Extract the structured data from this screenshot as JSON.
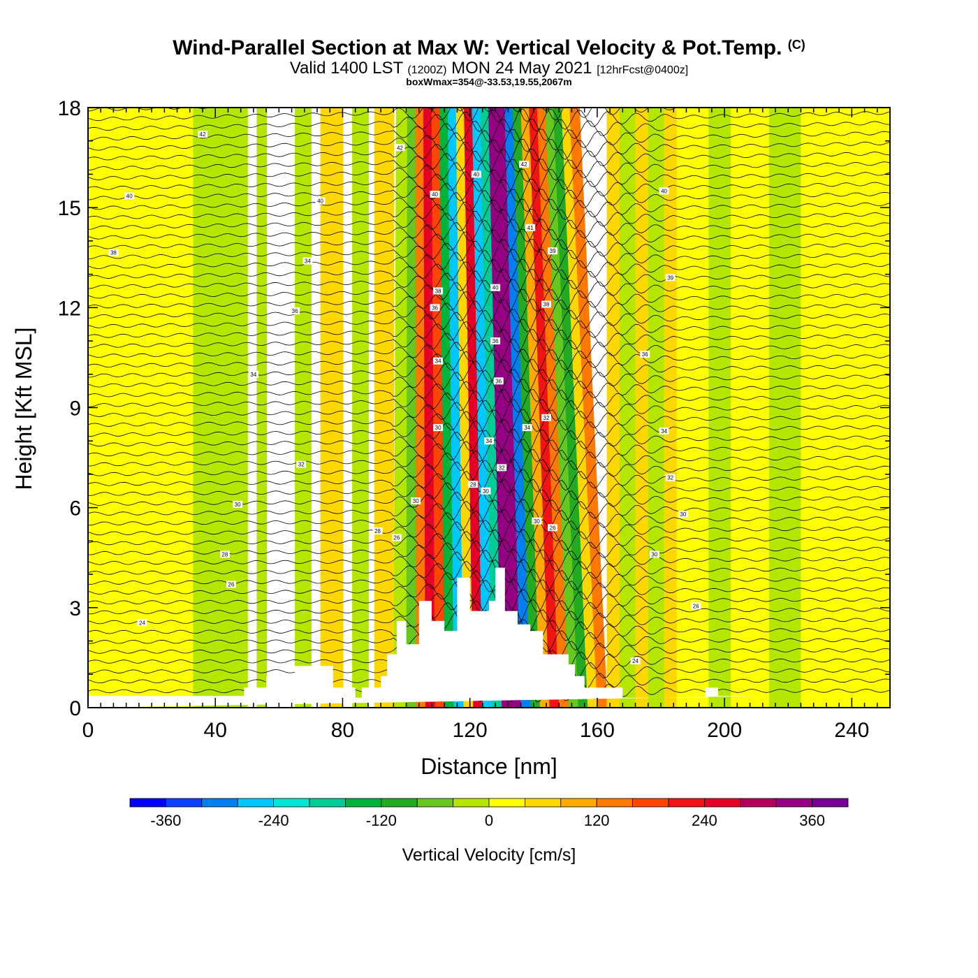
{
  "header": {
    "title_main": "Wind-Parallel Section at Max W: Vertical Velocity & Pot.Temp.",
    "title_mark": "(C)",
    "valid_prefix": "Valid 1400 LST",
    "valid_utc": "(1200Z)",
    "valid_date": "MON 24 May 2021",
    "valid_fcst": "[12hrFcst@0400z]",
    "boxwmax": "boxWmax=354@-33.53,19.55,2067m"
  },
  "chart_data": {
    "type": "heatmap",
    "xlabel": "Distance [nm]",
    "ylabel": "Height [Kft MSL]",
    "xlim": [
      0,
      252
    ],
    "ylim": [
      0,
      18
    ],
    "xticks": [
      0,
      40,
      80,
      120,
      160,
      200,
      240
    ],
    "yticks": [
      0,
      3,
      6,
      9,
      12,
      15,
      18
    ],
    "colorbar": {
      "label": "Vertical Velocity [cm/s]",
      "tick_labels": [
        -360,
        -240,
        -120,
        0,
        120,
        240,
        360
      ],
      "level_min": -400,
      "level_step": 40,
      "colors": [
        "#0000ff",
        "#0a40ff",
        "#0080f0",
        "#00c8ff",
        "#00e6d2",
        "#00cc96",
        "#00b43c",
        "#22aa22",
        "#66c81e",
        "#b4e600",
        "#ffff00",
        "#ffd700",
        "#ffaa00",
        "#ff7800",
        "#ff4600",
        "#f01414",
        "#e60028",
        "#b4005a",
        "#960082",
        "#780096"
      ]
    },
    "vertical_velocity_bands_cm_s": [
      {
        "x": [
          0,
          33
        ],
        "w": 0
      },
      {
        "x": [
          33,
          50
        ],
        "w": -40
      },
      {
        "x": [
          53,
          56
        ],
        "w": -40
      },
      {
        "x": [
          65,
          70
        ],
        "w": -40
      },
      {
        "x": [
          73,
          76
        ],
        "w": 60
      },
      {
        "x": [
          76,
          80
        ],
        "w": 40
      },
      {
        "x": [
          83,
          88
        ],
        "w": -40
      },
      {
        "x": [
          90,
          96
        ],
        "w": 40
      },
      {
        "x": [
          96,
          100
        ],
        "w": -40
      },
      {
        "x": [
          100,
          103
        ],
        "w": -80
      },
      {
        "x": [
          103,
          106
        ],
        "w": 120
      },
      {
        "x": [
          106,
          109
        ],
        "w": 240
      },
      {
        "x": [
          109,
          112
        ],
        "w": 160
      },
      {
        "x": [
          112,
          115
        ],
        "w": -160
      },
      {
        "x": [
          115,
          118
        ],
        "w": -260
      },
      {
        "x": [
          118,
          121
        ],
        "w": 40
      },
      {
        "x": [
          121,
          124
        ],
        "w": 260
      },
      {
        "x": [
          124,
          127
        ],
        "w": -280
      },
      {
        "x": [
          127,
          130
        ],
        "w": -200
      },
      {
        "x": [
          130,
          133
        ],
        "w": 330
      },
      {
        "x": [
          133,
          136
        ],
        "w": 354
      },
      {
        "x": [
          136,
          139
        ],
        "w": -300
      },
      {
        "x": [
          139,
          142
        ],
        "w": -120
      },
      {
        "x": [
          142,
          145
        ],
        "w": 80
      },
      {
        "x": [
          145,
          148
        ],
        "w": 200
      },
      {
        "x": [
          148,
          151
        ],
        "w": 120
      },
      {
        "x": [
          151,
          154
        ],
        "w": -60
      },
      {
        "x": [
          154,
          157
        ],
        "w": -120
      },
      {
        "x": [
          157,
          160
        ],
        "w": 40
      },
      {
        "x": [
          160,
          163
        ],
        "w": 120
      },
      {
        "x": [
          163,
          167
        ],
        "w": 60
      },
      {
        "x": [
          167,
          172
        ],
        "w": -40
      },
      {
        "x": [
          172,
          176
        ],
        "w": 40
      },
      {
        "x": [
          176,
          181
        ],
        "w": -40
      },
      {
        "x": [
          181,
          185
        ],
        "w": 40
      },
      {
        "x": [
          185,
          195
        ],
        "w": 0
      },
      {
        "x": [
          195,
          202
        ],
        "w": -40
      },
      {
        "x": [
          202,
          214
        ],
        "w": 0
      },
      {
        "x": [
          214,
          224
        ],
        "w": -40
      },
      {
        "x": [
          224,
          252
        ],
        "w": 0
      }
    ],
    "terrain_profile": {
      "x": [
        0,
        49,
        49,
        56,
        56,
        65,
        65,
        77,
        77,
        84,
        84,
        86,
        86,
        92,
        92,
        94,
        94,
        97,
        97,
        100,
        100,
        104,
        104,
        108,
        108,
        112,
        112,
        116,
        116,
        120,
        120,
        126,
        126,
        128,
        128,
        131,
        131,
        135,
        135,
        139,
        139,
        143,
        143,
        151,
        151,
        153,
        153,
        156,
        156,
        168,
        168,
        194,
        194,
        198,
        198,
        211,
        211,
        252
      ],
      "height": [
        0.35,
        0.35,
        0.6,
        0.6,
        0.95,
        0.95,
        1.25,
        1.25,
        0.6,
        0.6,
        0.3,
        0.3,
        0.6,
        0.6,
        0.95,
        0.95,
        1.6,
        1.6,
        2.6,
        2.6,
        1.9,
        1.9,
        3.2,
        3.2,
        2.6,
        2.6,
        2.3,
        2.3,
        3.9,
        3.9,
        2.9,
        2.9,
        3.2,
        3.2,
        4.2,
        4.2,
        2.9,
        2.9,
        2.5,
        2.5,
        2.3,
        2.3,
        1.6,
        1.6,
        1.3,
        1.3,
        0.95,
        0.95,
        0.6,
        0.6,
        0.3,
        0.3,
        0.6,
        0.6,
        0.35,
        0.35
      ]
    },
    "theta_contour_labels": [
      {
        "x": 36,
        "y": 17.2,
        "text": "42"
      },
      {
        "x": 13,
        "y": 15.35,
        "text": "40"
      },
      {
        "x": 8,
        "y": 13.65,
        "text": "38"
      },
      {
        "x": 69,
        "y": 13.4,
        "text": "34"
      },
      {
        "x": 65,
        "y": 11.9,
        "text": "36"
      },
      {
        "x": 52,
        "y": 10.0,
        "text": "34"
      },
      {
        "x": 67,
        "y": 7.3,
        "text": "32"
      },
      {
        "x": 47,
        "y": 6.1,
        "text": "30"
      },
      {
        "x": 43,
        "y": 4.6,
        "text": "28"
      },
      {
        "x": 45,
        "y": 3.7,
        "text": "26"
      },
      {
        "x": 17,
        "y": 2.55,
        "text": "24"
      },
      {
        "x": 73,
        "y": 15.2,
        "text": "40"
      },
      {
        "x": 98,
        "y": 16.8,
        "text": "42"
      },
      {
        "x": 109,
        "y": 15.4,
        "text": "40"
      },
      {
        "x": 110,
        "y": 12.5,
        "text": "38"
      },
      {
        "x": 109,
        "y": 12.0,
        "text": "36"
      },
      {
        "x": 110,
        "y": 10.4,
        "text": "34"
      },
      {
        "x": 110,
        "y": 8.4,
        "text": "30"
      },
      {
        "x": 103,
        "y": 6.2,
        "text": "30"
      },
      {
        "x": 91,
        "y": 5.3,
        "text": "28"
      },
      {
        "x": 97,
        "y": 5.1,
        "text": "26"
      },
      {
        "x": 122,
        "y": 16.0,
        "text": "40"
      },
      {
        "x": 128,
        "y": 12.6,
        "text": "40"
      },
      {
        "x": 128,
        "y": 11.0,
        "text": "36"
      },
      {
        "x": 129,
        "y": 9.8,
        "text": "36"
      },
      {
        "x": 126,
        "y": 8.0,
        "text": "34"
      },
      {
        "x": 130,
        "y": 7.2,
        "text": "32"
      },
      {
        "x": 121,
        "y": 6.7,
        "text": "28"
      },
      {
        "x": 125,
        "y": 6.5,
        "text": "30"
      },
      {
        "x": 137,
        "y": 16.3,
        "text": "42"
      },
      {
        "x": 139,
        "y": 14.4,
        "text": "41"
      },
      {
        "x": 146,
        "y": 13.7,
        "text": "39"
      },
      {
        "x": 144,
        "y": 12.1,
        "text": "38"
      },
      {
        "x": 138,
        "y": 8.4,
        "text": "34"
      },
      {
        "x": 144,
        "y": 8.7,
        "text": "32"
      },
      {
        "x": 141,
        "y": 5.6,
        "text": "30"
      },
      {
        "x": 146,
        "y": 5.4,
        "text": "26"
      },
      {
        "x": 181,
        "y": 15.5,
        "text": "40"
      },
      {
        "x": 183,
        "y": 12.9,
        "text": "39"
      },
      {
        "x": 175,
        "y": 10.6,
        "text": "36"
      },
      {
        "x": 181,
        "y": 8.3,
        "text": "34"
      },
      {
        "x": 183,
        "y": 6.9,
        "text": "32"
      },
      {
        "x": 187,
        "y": 5.8,
        "text": "30"
      },
      {
        "x": 178,
        "y": 4.6,
        "text": "30"
      },
      {
        "x": 191,
        "y": 3.05,
        "text": "26"
      },
      {
        "x": 172,
        "y": 1.4,
        "text": "24"
      }
    ]
  }
}
